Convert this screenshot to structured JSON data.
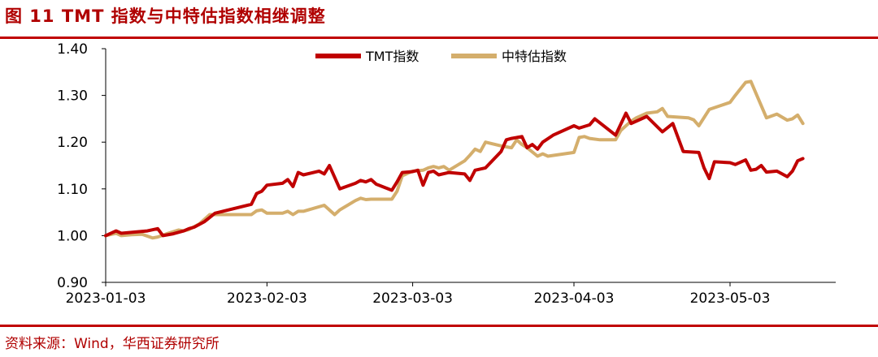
{
  "header": {
    "title": "图 11 TMT 指数与中特估指数相继调整"
  },
  "footer": {
    "source": "资料来源：Wind，华西证券研究所"
  },
  "colors": {
    "tmt": "#c00000",
    "zte": "#d4ae6c",
    "rule": "#c00000",
    "axis": "#000000"
  },
  "chart_data": {
    "type": "line",
    "title": "",
    "xlabel": "",
    "ylabel": "",
    "ylim": [
      0.9,
      1.4
    ],
    "yticks": [
      "0.90",
      "1.00",
      "1.10",
      "1.20",
      "1.30",
      "1.40"
    ],
    "xticks": [
      "2023-01-03",
      "2023-02-03",
      "2023-03-03",
      "2023-04-03",
      "2023-05-03"
    ],
    "xrange": [
      "2023-01-03",
      "2023-05-19"
    ],
    "grid": false,
    "legend": "top",
    "series": [
      {
        "name": "TMT指数",
        "color": "#c00000",
        "points": [
          [
            "2023-01-03",
            1.0
          ],
          [
            "2023-01-05",
            1.01
          ],
          [
            "2023-01-06",
            1.005
          ],
          [
            "2023-01-09",
            1.008
          ],
          [
            "2023-01-11",
            1.01
          ],
          [
            "2023-01-13",
            1.015
          ],
          [
            "2023-01-14",
            1.0
          ],
          [
            "2023-01-16",
            1.004
          ],
          [
            "2023-01-18",
            1.01
          ],
          [
            "2023-01-19",
            1.015
          ],
          [
            "2023-01-20",
            1.018
          ],
          [
            "2023-01-22",
            1.03
          ],
          [
            "2023-01-24",
            1.048
          ],
          [
            "2023-01-31",
            1.067
          ],
          [
            "2023-02-01",
            1.09
          ],
          [
            "2023-02-02",
            1.095
          ],
          [
            "2023-02-03",
            1.108
          ],
          [
            "2023-02-06",
            1.112
          ],
          [
            "2023-02-07",
            1.12
          ],
          [
            "2023-02-08",
            1.105
          ],
          [
            "2023-02-09",
            1.135
          ],
          [
            "2023-02-10",
            1.13
          ],
          [
            "2023-02-13",
            1.138
          ],
          [
            "2023-02-14",
            1.132
          ],
          [
            "2023-02-15",
            1.15
          ],
          [
            "2023-02-17",
            1.1
          ],
          [
            "2023-02-20",
            1.112
          ],
          [
            "2023-02-21",
            1.118
          ],
          [
            "2023-02-22",
            1.115
          ],
          [
            "2023-02-23",
            1.12
          ],
          [
            "2023-02-24",
            1.11
          ],
          [
            "2023-02-27",
            1.097
          ],
          [
            "2023-02-28",
            1.115
          ],
          [
            "2023-03-01",
            1.135
          ],
          [
            "2023-03-03",
            1.137
          ],
          [
            "2023-03-04",
            1.14
          ],
          [
            "2023-03-05",
            1.108
          ],
          [
            "2023-03-06",
            1.135
          ],
          [
            "2023-03-07",
            1.138
          ],
          [
            "2023-03-08",
            1.13
          ],
          [
            "2023-03-10",
            1.135
          ],
          [
            "2023-03-13",
            1.132
          ],
          [
            "2023-03-14",
            1.118
          ],
          [
            "2023-03-15",
            1.14
          ],
          [
            "2023-03-17",
            1.145
          ],
          [
            "2023-03-20",
            1.18
          ],
          [
            "2023-03-21",
            1.205
          ],
          [
            "2023-03-22",
            1.208
          ],
          [
            "2023-03-24",
            1.212
          ],
          [
            "2023-03-25",
            1.188
          ],
          [
            "2023-03-26",
            1.195
          ],
          [
            "2023-03-27",
            1.185
          ],
          [
            "2023-03-28",
            1.2
          ],
          [
            "2023-03-30",
            1.215
          ],
          [
            "2023-04-03",
            1.235
          ],
          [
            "2023-04-04",
            1.23
          ],
          [
            "2023-04-06",
            1.237
          ],
          [
            "2023-04-07",
            1.25
          ],
          [
            "2023-04-11",
            1.215
          ],
          [
            "2023-04-13",
            1.262
          ],
          [
            "2023-04-14",
            1.24
          ],
          [
            "2023-04-17",
            1.255
          ],
          [
            "2023-04-20",
            1.222
          ],
          [
            "2023-04-22",
            1.24
          ],
          [
            "2023-04-24",
            1.18
          ],
          [
            "2023-04-27",
            1.178
          ],
          [
            "2023-04-28",
            1.145
          ],
          [
            "2023-04-29",
            1.122
          ],
          [
            "2023-04-30",
            1.158
          ],
          [
            "2023-05-03",
            1.156
          ],
          [
            "2023-05-04",
            1.152
          ],
          [
            "2023-05-06",
            1.162
          ],
          [
            "2023-05-07",
            1.14
          ],
          [
            "2023-05-08",
            1.142
          ],
          [
            "2023-05-09",
            1.15
          ],
          [
            "2023-05-10",
            1.136
          ],
          [
            "2023-05-12",
            1.138
          ],
          [
            "2023-05-14",
            1.126
          ],
          [
            "2023-05-15",
            1.138
          ],
          [
            "2023-05-16",
            1.16
          ],
          [
            "2023-05-17",
            1.165
          ]
        ]
      },
      {
        "name": "中特估指数",
        "color": "#d4ae6c",
        "points": [
          [
            "2023-01-03",
            1.0
          ],
          [
            "2023-01-05",
            1.005
          ],
          [
            "2023-01-06",
            1.0
          ],
          [
            "2023-01-08",
            1.002
          ],
          [
            "2023-01-10",
            1.003
          ],
          [
            "2023-01-12",
            0.995
          ],
          [
            "2023-01-13",
            0.997
          ],
          [
            "2023-01-15",
            1.005
          ],
          [
            "2023-01-17",
            1.012
          ],
          [
            "2023-01-18",
            1.01
          ],
          [
            "2023-01-19",
            1.013
          ],
          [
            "2023-01-21",
            1.025
          ],
          [
            "2023-01-23",
            1.045
          ],
          [
            "2023-01-31",
            1.045
          ],
          [
            "2023-02-01",
            1.053
          ],
          [
            "2023-02-02",
            1.055
          ],
          [
            "2023-02-03",
            1.048
          ],
          [
            "2023-02-06",
            1.048
          ],
          [
            "2023-02-07",
            1.052
          ],
          [
            "2023-02-08",
            1.045
          ],
          [
            "2023-02-09",
            1.052
          ],
          [
            "2023-02-10",
            1.052
          ],
          [
            "2023-02-14",
            1.065
          ],
          [
            "2023-02-15",
            1.055
          ],
          [
            "2023-02-16",
            1.045
          ],
          [
            "2023-02-17",
            1.055
          ],
          [
            "2023-02-20",
            1.075
          ],
          [
            "2023-02-21",
            1.08
          ],
          [
            "2023-02-22",
            1.077
          ],
          [
            "2023-02-23",
            1.078
          ],
          [
            "2023-02-25",
            1.078
          ],
          [
            "2023-02-27",
            1.078
          ],
          [
            "2023-02-28",
            1.095
          ],
          [
            "2023-03-01",
            1.128
          ],
          [
            "2023-03-03",
            1.138
          ],
          [
            "2023-03-05",
            1.14
          ],
          [
            "2023-03-06",
            1.145
          ],
          [
            "2023-03-07",
            1.148
          ],
          [
            "2023-03-08",
            1.145
          ],
          [
            "2023-03-09",
            1.148
          ],
          [
            "2023-03-10",
            1.14
          ],
          [
            "2023-03-13",
            1.16
          ],
          [
            "2023-03-14",
            1.172
          ],
          [
            "2023-03-15",
            1.185
          ],
          [
            "2023-03-16",
            1.18
          ],
          [
            "2023-03-17",
            1.2
          ],
          [
            "2023-03-20",
            1.192
          ],
          [
            "2023-03-21",
            1.19
          ],
          [
            "2023-03-22",
            1.188
          ],
          [
            "2023-03-23",
            1.205
          ],
          [
            "2023-03-24",
            1.195
          ],
          [
            "2023-03-25",
            1.188
          ],
          [
            "2023-03-27",
            1.17
          ],
          [
            "2023-03-28",
            1.175
          ],
          [
            "2023-03-29",
            1.17
          ],
          [
            "2023-04-03",
            1.178
          ],
          [
            "2023-04-04",
            1.21
          ],
          [
            "2023-04-05",
            1.212
          ],
          [
            "2023-04-06",
            1.208
          ],
          [
            "2023-04-08",
            1.205
          ],
          [
            "2023-04-11",
            1.205
          ],
          [
            "2023-04-12",
            1.225
          ],
          [
            "2023-04-14",
            1.245
          ],
          [
            "2023-04-15",
            1.252
          ],
          [
            "2023-04-17",
            1.262
          ],
          [
            "2023-04-19",
            1.265
          ],
          [
            "2023-04-20",
            1.272
          ],
          [
            "2023-04-21",
            1.255
          ],
          [
            "2023-04-25",
            1.252
          ],
          [
            "2023-04-26",
            1.248
          ],
          [
            "2023-04-27",
            1.235
          ],
          [
            "2023-04-29",
            1.27
          ],
          [
            "2023-05-03",
            1.285
          ],
          [
            "2023-05-04",
            1.3
          ],
          [
            "2023-05-06",
            1.328
          ],
          [
            "2023-05-07",
            1.33
          ],
          [
            "2023-05-10",
            1.252
          ],
          [
            "2023-05-12",
            1.26
          ],
          [
            "2023-05-14",
            1.247
          ],
          [
            "2023-05-15",
            1.25
          ],
          [
            "2023-05-16",
            1.258
          ],
          [
            "2023-05-17",
            1.24
          ]
        ]
      }
    ]
  }
}
